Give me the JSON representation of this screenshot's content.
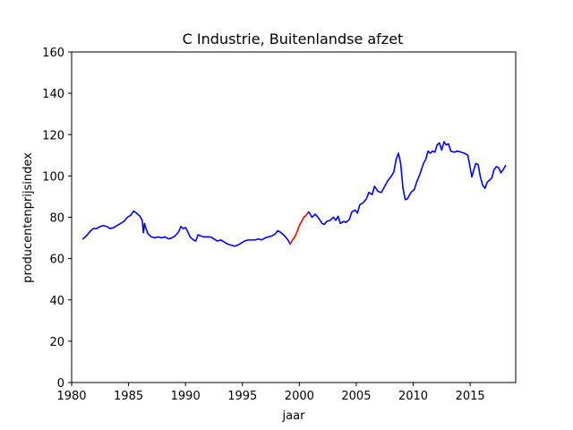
{
  "chart_data": {
    "type": "line",
    "title": "C Industrie, Buitenlandse afzet",
    "xlabel": "jaar",
    "ylabel": "producentenprijsindex",
    "xlim": [
      1980,
      2019
    ],
    "ylim": [
      0,
      160
    ],
    "xticks": [
      1980,
      1985,
      1990,
      1995,
      2000,
      2005,
      2010,
      2015
    ],
    "yticks": [
      0,
      20,
      40,
      60,
      80,
      100,
      120,
      140,
      160
    ],
    "grid": false,
    "legend": "none",
    "series": [
      {
        "color": "#0000ff",
        "points": [
          [
            1981.0,
            69.5
          ],
          [
            1981.3,
            71.0
          ],
          [
            1981.6,
            73.0
          ],
          [
            1981.9,
            74.5
          ],
          [
            1982.2,
            74.5
          ],
          [
            1982.5,
            75.5
          ],
          [
            1982.8,
            76.0
          ],
          [
            1983.1,
            75.5
          ],
          [
            1983.4,
            74.5
          ],
          [
            1983.7,
            75.0
          ],
          [
            1984.0,
            76.0
          ],
          [
            1984.3,
            77.0
          ],
          [
            1984.6,
            78.0
          ],
          [
            1984.9,
            80.0
          ],
          [
            1985.2,
            81.0
          ],
          [
            1985.45,
            83.0
          ],
          [
            1985.7,
            82.0
          ],
          [
            1986.0,
            80.5
          ],
          [
            1986.2,
            78.5
          ],
          [
            1986.3,
            72.5
          ],
          [
            1986.4,
            77.0
          ],
          [
            1986.5,
            75.0
          ],
          [
            1986.7,
            72.0
          ],
          [
            1987.0,
            70.5
          ],
          [
            1987.3,
            70.0
          ],
          [
            1987.6,
            70.5
          ],
          [
            1987.9,
            70.0
          ],
          [
            1988.2,
            70.5
          ],
          [
            1988.5,
            69.5
          ],
          [
            1988.8,
            70.0
          ],
          [
            1989.1,
            71.0
          ],
          [
            1989.4,
            73.0
          ],
          [
            1989.6,
            75.5
          ],
          [
            1989.8,
            74.5
          ],
          [
            1990.0,
            75.0
          ],
          [
            1990.2,
            73.0
          ],
          [
            1990.4,
            70.5
          ],
          [
            1990.7,
            69.0
          ],
          [
            1990.9,
            68.5
          ],
          [
            1991.1,
            71.5
          ],
          [
            1991.3,
            71.0
          ],
          [
            1991.6,
            70.5
          ],
          [
            1991.9,
            70.5
          ],
          [
            1992.2,
            70.5
          ],
          [
            1992.5,
            69.5
          ],
          [
            1992.8,
            68.5
          ],
          [
            1993.1,
            69.0
          ],
          [
            1993.4,
            68.0
          ],
          [
            1993.7,
            67.0
          ],
          [
            1994.0,
            66.5
          ],
          [
            1994.3,
            66.0
          ],
          [
            1994.6,
            66.5
          ],
          [
            1994.9,
            67.5
          ],
          [
            1995.2,
            68.5
          ],
          [
            1995.5,
            69.0
          ],
          [
            1995.8,
            69.0
          ],
          [
            1996.1,
            69.0
          ],
          [
            1996.4,
            69.5
          ],
          [
            1996.7,
            69.0
          ],
          [
            1997.0,
            70.0
          ],
          [
            1997.3,
            70.5
          ],
          [
            1997.6,
            71.0
          ],
          [
            1997.9,
            72.0
          ],
          [
            1998.1,
            73.5
          ],
          [
            1998.4,
            72.5
          ],
          [
            1998.7,
            71.0
          ],
          [
            1999.0,
            69.0
          ],
          [
            1999.2,
            67.0
          ]
        ]
      },
      {
        "color": "#ff0000",
        "points": [
          [
            1999.2,
            67.0
          ],
          [
            1999.4,
            69.0
          ],
          [
            1999.6,
            70.5
          ],
          [
            1999.8,
            73.0
          ],
          [
            2000.0,
            76.0
          ],
          [
            2000.2,
            78.0
          ],
          [
            2000.4,
            80.0
          ],
          [
            2000.6,
            81.0
          ],
          [
            2000.8,
            82.5
          ]
        ]
      },
      {
        "color": "#0000ff",
        "points": [
          [
            2000.8,
            82.5
          ],
          [
            2000.9,
            82.0
          ],
          [
            2001.1,
            80.0
          ],
          [
            2001.4,
            81.5
          ],
          [
            2001.7,
            79.5
          ],
          [
            2002.0,
            77.0
          ],
          [
            2002.2,
            76.5
          ],
          [
            2002.4,
            78.0
          ],
          [
            2002.7,
            78.5
          ],
          [
            2003.0,
            80.0
          ],
          [
            2003.2,
            78.5
          ],
          [
            2003.4,
            80.5
          ],
          [
            2003.6,
            77.0
          ],
          [
            2003.9,
            78.0
          ],
          [
            2004.1,
            77.5
          ],
          [
            2004.4,
            79.0
          ],
          [
            2004.6,
            82.5
          ],
          [
            2004.9,
            83.5
          ],
          [
            2005.1,
            82.0
          ],
          [
            2005.3,
            86.0
          ],
          [
            2005.6,
            87.0
          ],
          [
            2005.9,
            89.0
          ],
          [
            2006.1,
            92.0
          ],
          [
            2006.4,
            91.0
          ],
          [
            2006.6,
            95.0
          ],
          [
            2006.9,
            92.5
          ],
          [
            2007.2,
            92.0
          ],
          [
            2007.5,
            95.0
          ],
          [
            2007.8,
            98.0
          ],
          [
            2008.1,
            100.0
          ],
          [
            2008.3,
            102.0
          ],
          [
            2008.5,
            108.0
          ],
          [
            2008.7,
            111.0
          ],
          [
            2008.9,
            106.0
          ],
          [
            2009.1,
            94.0
          ],
          [
            2009.3,
            88.5
          ],
          [
            2009.5,
            89.0
          ],
          [
            2009.8,
            92.0
          ],
          [
            2010.1,
            93.5
          ],
          [
            2010.3,
            97.0
          ],
          [
            2010.6,
            101.0
          ],
          [
            2010.9,
            106.0
          ],
          [
            2011.1,
            108.0
          ],
          [
            2011.3,
            112.0
          ],
          [
            2011.5,
            111.0
          ],
          [
            2011.7,
            112.0
          ],
          [
            2011.9,
            111.5
          ],
          [
            2012.1,
            115.0
          ],
          [
            2012.3,
            116.0
          ],
          [
            2012.5,
            112.5
          ],
          [
            2012.7,
            116.5
          ],
          [
            2012.9,
            115.0
          ],
          [
            2013.1,
            115.5
          ],
          [
            2013.3,
            112.0
          ],
          [
            2013.6,
            111.5
          ],
          [
            2013.9,
            112.0
          ],
          [
            2014.2,
            111.5
          ],
          [
            2014.5,
            111.0
          ],
          [
            2014.8,
            110.0
          ],
          [
            2015.0,
            104.0
          ],
          [
            2015.15,
            99.5
          ],
          [
            2015.3,
            102.5
          ],
          [
            2015.5,
            106.0
          ],
          [
            2015.7,
            105.5
          ],
          [
            2015.9,
            99.5
          ],
          [
            2016.1,
            95.5
          ],
          [
            2016.3,
            94.0
          ],
          [
            2016.5,
            97.0
          ],
          [
            2016.7,
            98.0
          ],
          [
            2016.9,
            99.0
          ],
          [
            2017.1,
            103.0
          ],
          [
            2017.3,
            104.5
          ],
          [
            2017.5,
            104.0
          ],
          [
            2017.7,
            101.5
          ],
          [
            2017.9,
            103.0
          ],
          [
            2018.1,
            105.0
          ]
        ]
      }
    ]
  }
}
